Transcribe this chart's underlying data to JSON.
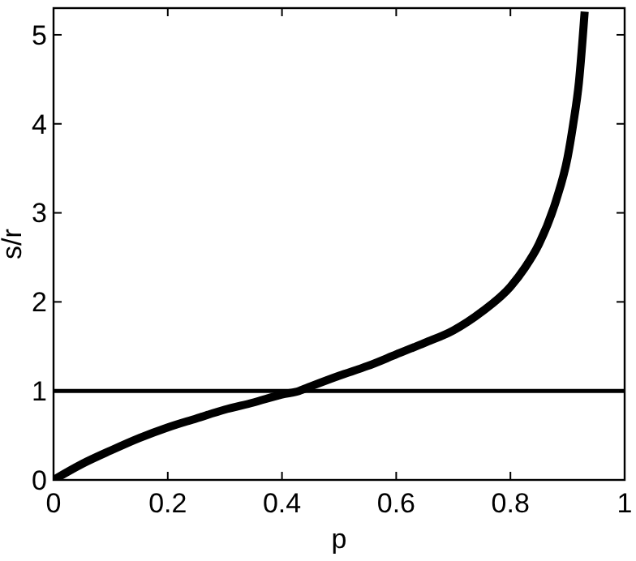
{
  "chart_data": {
    "type": "line",
    "xlabel": "p",
    "ylabel": "s/r",
    "series": [
      {
        "color": "#000000",
        "x": [
          0,
          0.05,
          0.1,
          0.15,
          0.2,
          0.25,
          0.3,
          0.35,
          0.4,
          0.43,
          0.45,
          0.5,
          0.55,
          0.6,
          0.65,
          0.7,
          0.75,
          0.8,
          0.825,
          0.85,
          0.88,
          0.9,
          0.91,
          0.92,
          0.93
        ],
        "values": [
          0,
          0.18,
          0.33,
          0.47,
          0.59,
          0.69,
          0.79,
          0.87,
          0.96,
          1.0,
          1.05,
          1.17,
          1.28,
          1.41,
          1.54,
          1.68,
          1.89,
          2.17,
          2.38,
          2.65,
          3.14,
          3.62,
          4.0,
          4.47,
          5.26
        ]
      }
    ],
    "ref_lines": [
      {
        "axis": "y",
        "value": 1,
        "color": "#000000"
      }
    ],
    "xlim": [
      0,
      1
    ],
    "ylim": [
      0,
      5.3
    ],
    "xticks": [
      0,
      {
        "value": 0.2,
        "label": "0.2"
      },
      {
        "value": 0.4,
        "label": "0.4"
      },
      {
        "value": 0.6,
        "label": "0.6"
      },
      {
        "value": 0.8,
        "label": "0.8"
      },
      1
    ],
    "yticks": [
      0,
      1,
      2,
      3,
      4,
      5
    ],
    "grid": false,
    "marker": "none",
    "line_style": "solid"
  }
}
